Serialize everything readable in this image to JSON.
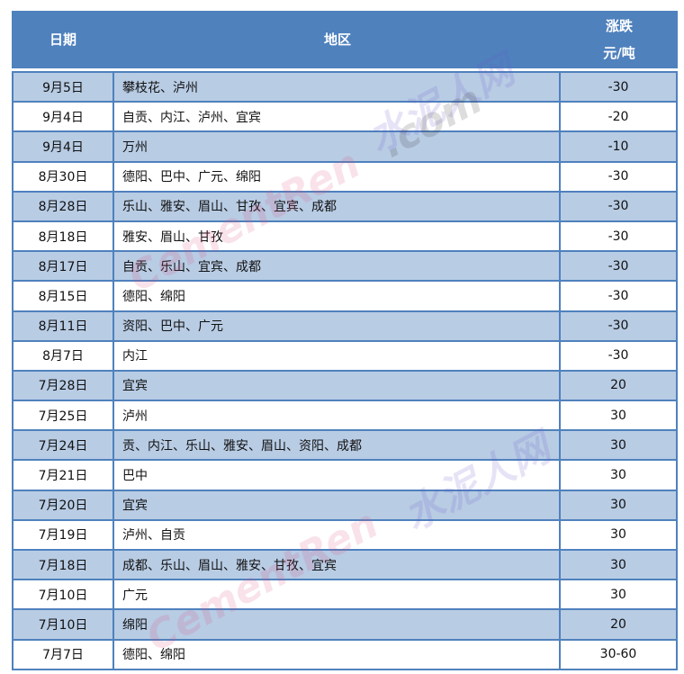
{
  "header": {
    "date": "日期",
    "region": "地区",
    "change_line1": "涨跌",
    "change_line2": "元/吨"
  },
  "rows": [
    {
      "date": "9月5日",
      "region": "攀枝花、泸州",
      "change": "-30"
    },
    {
      "date": "9月4日",
      "region": "自贡、内江、泸州、宜宾",
      "change": "-20"
    },
    {
      "date": "9月4日",
      "region": "万州",
      "change": "-10"
    },
    {
      "date": "8月30日",
      "region": "德阳、巴中、广元、绵阳",
      "change": "-30"
    },
    {
      "date": "8月28日",
      "region": "乐山、雅安、眉山、甘孜、宜宾、成都",
      "change": "-30"
    },
    {
      "date": "8月18日",
      "region": "雅安、眉山、甘孜",
      "change": "-30"
    },
    {
      "date": "8月17日",
      "region": "自贡、乐山、宜宾、成都",
      "change": "-30"
    },
    {
      "date": "8月15日",
      "region": "德阳、绵阳",
      "change": "-30"
    },
    {
      "date": "8月11日",
      "region": "资阳、巴中、广元",
      "change": "-30"
    },
    {
      "date": "8月7日",
      "region": "内江",
      "change": "-30"
    },
    {
      "date": "7月28日",
      "region": "宜宾",
      "change": "20"
    },
    {
      "date": "7月25日",
      "region": "泸州",
      "change": "30"
    },
    {
      "date": "7月24日",
      "region": "贡、内江、乐山、雅安、眉山、资阳、成都",
      "change": "30"
    },
    {
      "date": "7月21日",
      "region": "巴中",
      "change": "30"
    },
    {
      "date": "7月20日",
      "region": "宜宾",
      "change": "30"
    },
    {
      "date": "7月19日",
      "region": "泸州、自贡",
      "change": "30"
    },
    {
      "date": "7月18日",
      "region": "成都、乐山、眉山、雅安、甘孜、宜宾",
      "change": "30"
    },
    {
      "date": "7月10日",
      "region": "广元",
      "change": "30"
    },
    {
      "date": "7月10日",
      "region": "绵阳",
      "change": "20"
    },
    {
      "date": "7月7日",
      "region": "德阳、绵阳",
      "change": "30-60"
    }
  ],
  "watermark": {
    "cn": "水泥人网",
    "en": "CementRen",
    ".com": ".com"
  },
  "colors": {
    "header": "#4f81bd",
    "alt_row": "#b8cce4",
    "border": "#4f81bd"
  }
}
